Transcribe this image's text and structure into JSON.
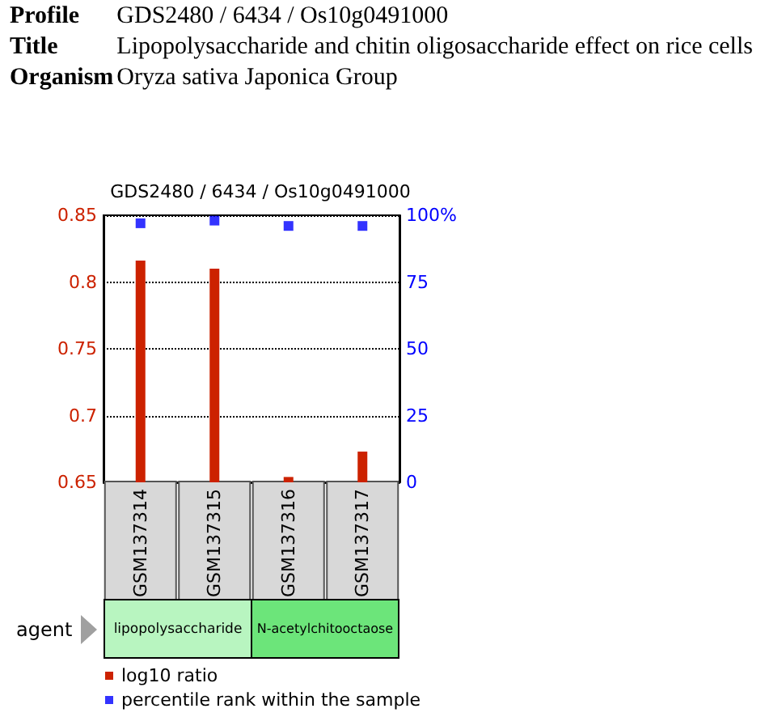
{
  "chart_data": {
    "type": "bar",
    "title": "GDS2480 / 6434 / Os10g0491000",
    "annotations": [
      "Profile",
      "GDS2480 / 6434 / Os10g0491000",
      "Title",
      "Lipopolysaccharide and chitin oligosaccharide effect on rice cells",
      "Organism",
      "Oryza sativa Japonica Group",
      "agent",
      "lipopolysaccharide",
      "N-acetylchitooctaose"
    ],
    "categories": [
      "GSM137314",
      "GSM137315",
      "GSM137316",
      "GSM137317"
    ],
    "series": [
      {
        "name": "log10 ratio",
        "color": "#cc2200",
        "values": [
          0.816,
          0.81,
          0.654,
          0.673
        ]
      },
      {
        "name": "percentile rank within the sample",
        "type": "scatter",
        "axis": "y2",
        "color": "#0000ff",
        "marker": "square",
        "values": [
          97,
          98,
          96,
          96
        ]
      }
    ],
    "ylim": [
      0.65,
      0.85
    ],
    "yticks": [
      0.65,
      0.7,
      0.75,
      0.8,
      0.85
    ],
    "y2lim": [
      0,
      100
    ],
    "y2ticks": [
      0,
      25,
      50,
      75,
      {
        "value": 100,
        "label": "100%"
      }
    ],
    "grid": "y",
    "legend": "bottom"
  }
}
